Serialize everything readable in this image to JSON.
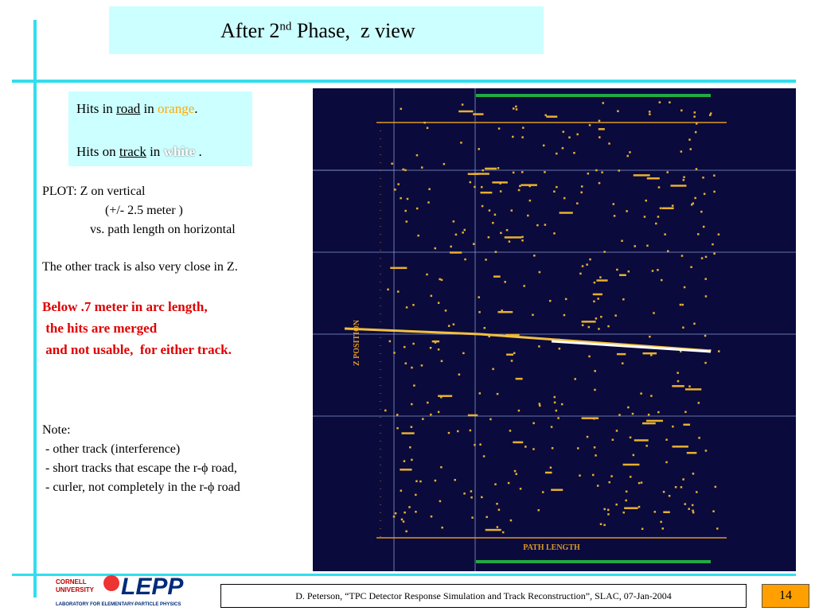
{
  "header": {
    "title": "After 2",
    "title_sup": "nd",
    "title_rest": " Phase,  z view"
  },
  "legend_box": {
    "line1": [
      "Hits in ",
      "road",
      " in ",
      "orange",
      "."
    ],
    "line2": [
      "Hits on ",
      "track",
      " in ",
      "white",
      " ."
    ]
  },
  "body": {
    "plot_desc": [
      "PLOT: Z on vertical",
      "(+/- 2.5 meter )",
      "vs. path length on horizontal"
    ],
    "other_track": "The other track is also very close in Z.",
    "warning": [
      "Below .7 meter in arc length,",
      " the hits are merged",
      " and not usable,  for either track."
    ],
    "note_title": "Note:",
    "notes": [
      " - other track (interference)",
      " - short tracks that escape the r-ϕ road,",
      " - curler, not completely in the r-ϕ road"
    ]
  },
  "plot": {
    "y_axis_label": "Z POSITION",
    "x_axis_label": "PATH LENGTH"
  },
  "footer": {
    "logo_top": "CORNELL",
    "logo_mid": "UNIVERSITY",
    "logo_name": "LEPP",
    "logo_sub": "LABORATORY FOR ELEMENTARY-PARTICLE PHYSICS",
    "citation": "D. Peterson, “TPC Detector Response Simulation and Track Reconstruction”, SLAC, 07-Jan-2004",
    "page": "14"
  }
}
